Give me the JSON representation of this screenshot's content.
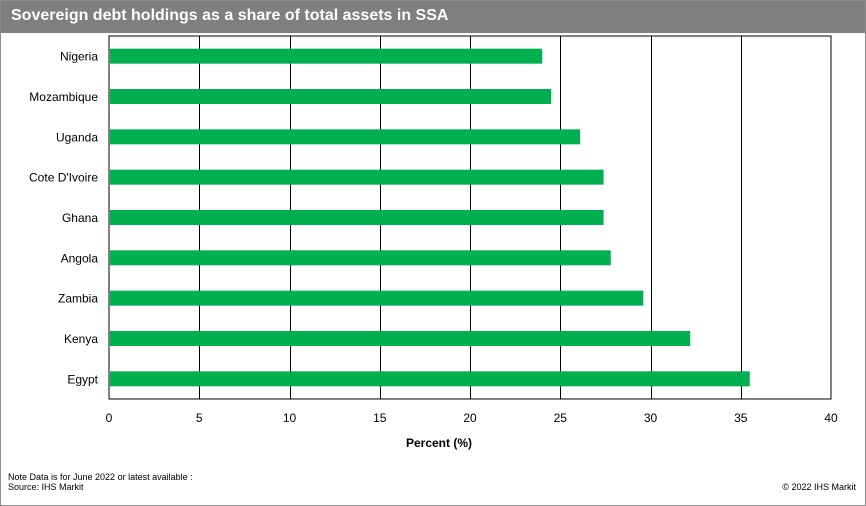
{
  "header": {
    "title": "Sovereign debt holdings as a share of total assets in SSA"
  },
  "chart_data": {
    "type": "bar",
    "orientation": "horizontal",
    "title": "Sovereign debt holdings as a share of total assets in SSA",
    "categories": [
      "Nigeria",
      "Mozambique",
      "Uganda",
      "Cote D'Ivoire",
      "Ghana",
      "Angola",
      "Zambia",
      "Kenya",
      "Egypt"
    ],
    "values": [
      24.0,
      24.5,
      26.1,
      27.4,
      27.4,
      27.8,
      29.6,
      32.2,
      35.5
    ],
    "xlabel": "Percent (%)",
    "ylabel": "",
    "xlim": [
      0,
      40
    ],
    "xticks": [
      0,
      5,
      10,
      15,
      20,
      25,
      30,
      35,
      40
    ],
    "grid": true,
    "bar_color": "#00b050"
  },
  "footer": {
    "note": "Note Data is for June 2022  or latest available :",
    "source": "Source:  IHS Markit",
    "copyright": "© 2022  IHS Markit"
  }
}
